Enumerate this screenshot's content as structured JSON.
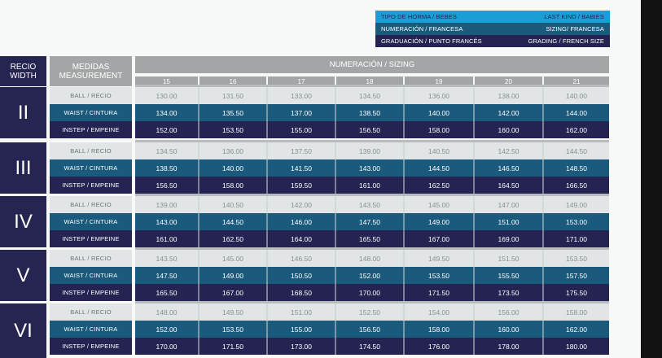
{
  "info_box": [
    {
      "left": "TIPO DE HORMA / BEBES",
      "right": "LAST KIND / BABIES"
    },
    {
      "left": "NUMERACIÓN / FRANCESA",
      "right": "SIZING/ FRANCESA"
    },
    {
      "left": "GRADUACIÓN / PUNTO FRANCÉS",
      "right": "GRADING / FRENCH SIZE"
    }
  ],
  "headers": {
    "width_line1": "RECIO",
    "width_line2": "WIDTH",
    "measures_line1": "MEDIDAS",
    "measures_line2": "MEASUREMENT",
    "sizing": "NUMERACIÓN / SIZING"
  },
  "sizes": [
    "15",
    "16",
    "17",
    "18",
    "19",
    "20",
    "21"
  ],
  "row_labels": [
    "BALL / RECIO",
    "WAIST / CINTURA",
    "INSTEP / EMPEINE"
  ],
  "groups": [
    {
      "width": "II",
      "rows": [
        [
          "130.00",
          "131.50",
          "133.00",
          "134.50",
          "136.00",
          "138.00",
          "140.00"
        ],
        [
          "134.00",
          "135.50",
          "137.00",
          "138.50",
          "140.00",
          "142.00",
          "144.00"
        ],
        [
          "152.00",
          "153.50",
          "155.00",
          "156.50",
          "158.00",
          "160.00",
          "162.00"
        ]
      ]
    },
    {
      "width": "III",
      "rows": [
        [
          "134.50",
          "136.00",
          "137.50",
          "139.00",
          "140.50",
          "142.50",
          "144.50"
        ],
        [
          "138.50",
          "140.00",
          "141.50",
          "143.00",
          "144.50",
          "146.50",
          "148.50"
        ],
        [
          "156.50",
          "158.00",
          "159.50",
          "161.00",
          "162.50",
          "164.50",
          "166.50"
        ]
      ]
    },
    {
      "width": "IV",
      "rows": [
        [
          "139.00",
          "140.50",
          "142.00",
          "143.50",
          "145.00",
          "147.00",
          "149.00"
        ],
        [
          "143.00",
          "144.50",
          "146.00",
          "147.50",
          "149.00",
          "151.00",
          "153.00"
        ],
        [
          "161.00",
          "162.50",
          "164.00",
          "165.50",
          "167.00",
          "169.00",
          "171.00"
        ]
      ]
    },
    {
      "width": "V",
      "rows": [
        [
          "143.50",
          "145.00",
          "146.50",
          "148.00",
          "149.50",
          "151.50",
          "153.50"
        ],
        [
          "147.50",
          "149.00",
          "150.50",
          "152.00",
          "153.50",
          "155.50",
          "157.50"
        ],
        [
          "165.50",
          "167.00",
          "168.50",
          "170.00",
          "171.50",
          "173.50",
          "175.50"
        ]
      ]
    },
    {
      "width": "VI",
      "rows": [
        [
          "148.00",
          "149.50",
          "151.00",
          "152.50",
          "154.00",
          "156.00",
          "158.00"
        ],
        [
          "152.00",
          "153.50",
          "155.00",
          "156.50",
          "158.00",
          "160.00",
          "162.00"
        ],
        [
          "170.00",
          "171.50",
          "173.00",
          "174.50",
          "176.00",
          "178.00",
          "180.00"
        ]
      ]
    }
  ],
  "colors": {
    "navy": "#252352",
    "teal": "#1a5a7c",
    "cyan": "#18a0d6",
    "header_gray": "#a3a6a6",
    "ball_row": "#e1e5e6"
  }
}
